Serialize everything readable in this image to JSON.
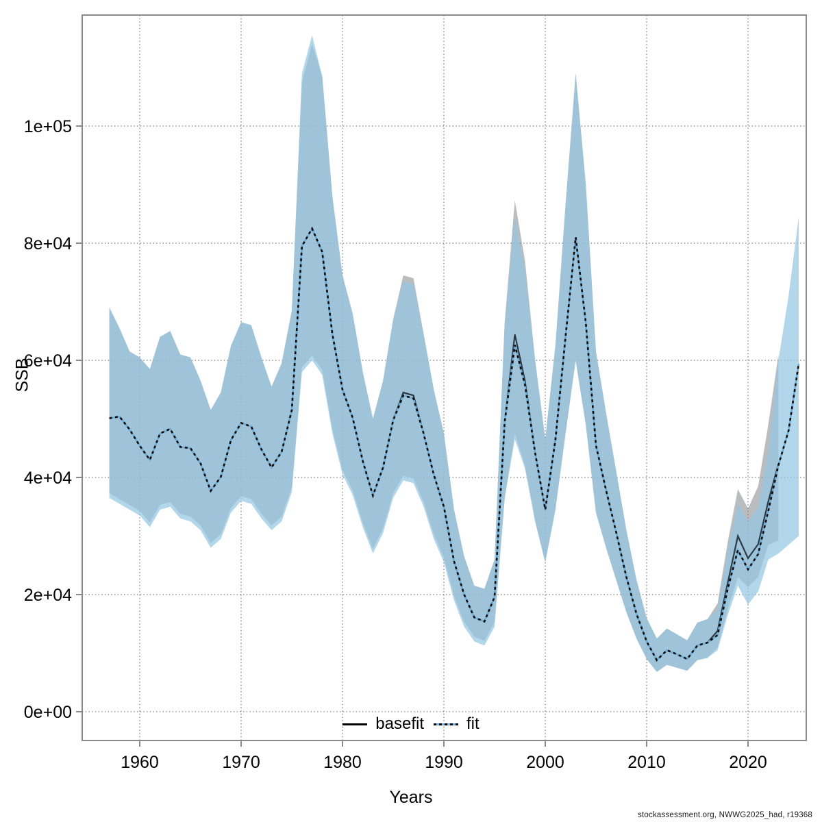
{
  "figure": {
    "footer": "stockassessment.org, NWWG2025_had, r19368"
  },
  "chart_data": {
    "type": "line",
    "title": "",
    "xlabel": "Years",
    "ylabel": "SSB",
    "grid": true,
    "legend_position": "bottom-center",
    "xlim": [
      1954.3,
      2025.7
    ],
    "ylim": [
      -2000,
      119000
    ],
    "xticks": [
      1960,
      1970,
      1980,
      1990,
      2000,
      2010,
      2020
    ],
    "yticks": [
      {
        "value": 0,
        "label": "0e+00"
      },
      {
        "value": 20000,
        "label": "2e+04"
      },
      {
        "value": 40000,
        "label": "4e+04"
      },
      {
        "value": 60000,
        "label": "6e+04"
      },
      {
        "value": 80000,
        "label": "8e+04"
      },
      {
        "value": 100000,
        "label": "1e+05"
      }
    ],
    "colors": {
      "basefit_band": "rgba(130,133,136,0.55)",
      "fit_band": "rgba(148,198,226,0.72)",
      "basefit_line": "rgba(18,28,36,0.82)",
      "fit_line_under": "#6fadd6",
      "fit_line_dash": "#0a0a0a",
      "grid": "#3a3a3a",
      "axis": "#8a8a8a",
      "tick_text": "#000000"
    },
    "x": [
      1957,
      1958,
      1959,
      1960,
      1961,
      1962,
      1963,
      1964,
      1965,
      1966,
      1967,
      1968,
      1969,
      1970,
      1971,
      1972,
      1973,
      1974,
      1975,
      1976,
      1977,
      1978,
      1979,
      1980,
      1981,
      1982,
      1983,
      1984,
      1985,
      1986,
      1987,
      1988,
      1989,
      1990,
      1991,
      1992,
      1993,
      1994,
      1995,
      1996,
      1997,
      1998,
      1999,
      2000,
      2001,
      2002,
      2003,
      2004,
      2005,
      2006,
      2007,
      2008,
      2009,
      2010,
      2011,
      2012,
      2013,
      2014,
      2015,
      2016,
      2017,
      2018,
      2019,
      2020,
      2021,
      2022,
      2023,
      2024,
      2025
    ],
    "series": [
      {
        "name": "basefit",
        "style": "solid",
        "color": "#000000",
        "x_end": 2023,
        "values": [
          50100,
          50400,
          48200,
          45400,
          43000,
          47500,
          48300,
          45200,
          45000,
          42400,
          37700,
          40100,
          46400,
          49300,
          48700,
          44800,
          41700,
          44400,
          51500,
          79500,
          82500,
          78500,
          64500,
          55000,
          50200,
          42800,
          36900,
          41700,
          49800,
          54500,
          54000,
          47500,
          40500,
          35000,
          25700,
          20000,
          16100,
          15400,
          19600,
          49500,
          64400,
          56500,
          44200,
          34500,
          46400,
          64000,
          81000,
          66400,
          45500,
          37800,
          30600,
          23000,
          16700,
          12000,
          8800,
          10500,
          9800,
          9000,
          11300,
          11800,
          13800,
          22000,
          30000,
          26200,
          28600,
          35900,
          42300
        ],
        "lower": [
          37300,
          36300,
          35300,
          34300,
          32300,
          35300,
          35800,
          33800,
          33300,
          31800,
          28800,
          30300,
          34800,
          36800,
          36300,
          33800,
          31800,
          33300,
          38300,
          58800,
          60800,
          58300,
          48300,
          41300,
          37800,
          32300,
          27800,
          31300,
          37300,
          40300,
          39800,
          35800,
          30300,
          26300,
          19800,
          15300,
          12800,
          12100,
          15300,
          36500,
          47500,
          42000,
          32500,
          25500,
          34500,
          47500,
          60000,
          49000,
          34000,
          28000,
          22500,
          17000,
          12500,
          9000,
          6800,
          8000,
          7500,
          7000,
          8800,
          9200,
          11000,
          17500,
          23000,
          21300,
          23000,
          28500,
          29200
        ],
        "upper": [
          69000,
          65500,
          61500,
          60500,
          58500,
          64000,
          65000,
          61000,
          60500,
          56500,
          51500,
          54500,
          62500,
          66500,
          66000,
          60500,
          55500,
          59500,
          68500,
          107500,
          114000,
          108500,
          88000,
          74500,
          68000,
          58000,
          50000,
          56500,
          67000,
          74500,
          74000,
          64500,
          55000,
          47500,
          34500,
          26500,
          21500,
          21000,
          26000,
          66500,
          87300,
          77000,
          60000,
          46500,
          62500,
          86500,
          109000,
          90000,
          61500,
          51000,
          41000,
          31000,
          22500,
          16000,
          12500,
          14200,
          13200,
          12200,
          15200,
          15800,
          18500,
          29000,
          38000,
          34700,
          38500,
          49000,
          61000
        ]
      },
      {
        "name": "fit",
        "style": "dotted",
        "color": "#6fadd6",
        "x_end": 2025,
        "values": [
          50100,
          50400,
          48200,
          45400,
          43000,
          47500,
          48300,
          45200,
          45000,
          42400,
          37700,
          40100,
          46400,
          49300,
          48700,
          44800,
          41700,
          44400,
          51500,
          79500,
          82500,
          78500,
          64500,
          55000,
          50200,
          42800,
          36900,
          41700,
          49800,
          54000,
          53500,
          47500,
          40500,
          35000,
          25700,
          20000,
          16100,
          15400,
          19600,
          49500,
          62600,
          55800,
          44200,
          34500,
          46400,
          64000,
          81000,
          66400,
          45500,
          37800,
          30600,
          23000,
          16700,
          12000,
          8800,
          10500,
          9800,
          9000,
          11300,
          11800,
          13100,
          21000,
          27600,
          24300,
          26900,
          34300,
          42100,
          48000,
          59400
        ],
        "lower": [
          36500,
          35500,
          34500,
          33500,
          31500,
          34500,
          35000,
          33000,
          32500,
          31000,
          28000,
          29500,
          34000,
          36000,
          35500,
          33000,
          31000,
          32500,
          37500,
          58000,
          60000,
          57500,
          47500,
          40500,
          37000,
          31500,
          27000,
          30500,
          36500,
          39500,
          39000,
          35000,
          29500,
          25500,
          19000,
          14500,
          12000,
          11300,
          14500,
          36500,
          46500,
          41500,
          32500,
          25500,
          34500,
          47500,
          60000,
          49000,
          34000,
          28000,
          22500,
          17000,
          12500,
          9000,
          6800,
          8000,
          7500,
          7000,
          8800,
          9200,
          10500,
          16500,
          21500,
          18300,
          20500,
          26000,
          27000,
          28500,
          30000
        ],
        "upper": [
          69000,
          65500,
          61500,
          60500,
          58500,
          64000,
          65000,
          61000,
          60500,
          56500,
          51500,
          54500,
          62500,
          66500,
          66000,
          60500,
          55500,
          59500,
          68500,
          109000,
          115500,
          108500,
          88000,
          74500,
          68000,
          58000,
          50000,
          56500,
          67000,
          73500,
          73000,
          64500,
          55000,
          47500,
          34500,
          26500,
          21500,
          21000,
          26000,
          66500,
          84500,
          75500,
          60000,
          46500,
          62500,
          86500,
          109000,
          90000,
          61500,
          51000,
          41000,
          31000,
          22500,
          16000,
          12500,
          14200,
          13200,
          12200,
          15200,
          15800,
          17500,
          27500,
          35500,
          32500,
          35000,
          44500,
          60000,
          71000,
          84500
        ]
      }
    ]
  }
}
